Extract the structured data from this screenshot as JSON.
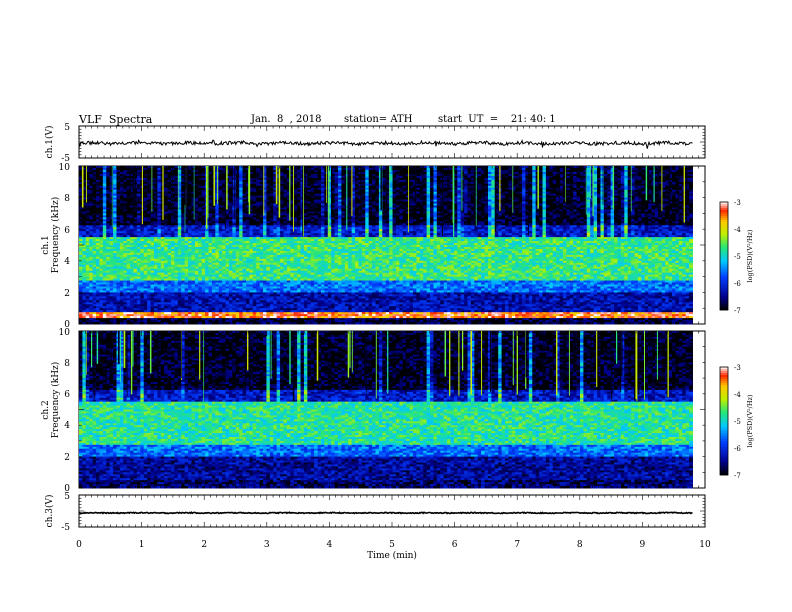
{
  "header": {
    "title": "VLF  Spectra",
    "date": "Jan.  8  , 2018",
    "station": "station= ATH",
    "start_ut": "start  UT  =    21: 40: 1"
  },
  "chart_data": [
    {
      "type": "line",
      "panel": "ch1-waveform",
      "ylabel": "ch.1(V)",
      "ylim": [
        -5,
        5
      ],
      "yticks": [
        "5",
        "-5"
      ],
      "xlim": [
        0,
        10
      ],
      "trace_level_V": -0.4,
      "trace_noise_V": 0.5
    },
    {
      "type": "heatmap",
      "panel": "ch1-spectrogram",
      "ylabel": "ch.1\nFrequency  (kHz)",
      "ylabel_line1": "ch.1",
      "ylabel_line2": "Frequency  (kHz)",
      "ylim": [
        0,
        10
      ],
      "yticks": [
        "0",
        "2",
        "4",
        "6",
        "8",
        "10"
      ],
      "xlim": [
        0,
        10
      ],
      "data_xmax_min": 9.8,
      "colorbar": {
        "label": "log(PSD)(V²/Hz)",
        "range": [
          -7,
          -3
        ],
        "ticks": [
          "-3",
          "-4",
          "-5",
          "-6",
          "-7"
        ]
      },
      "bands_kHz": [
        {
          "range": [
            0,
            0.4
          ],
          "level": -6.8
        },
        {
          "range": [
            0.4,
            0.8
          ],
          "level": -3.4
        },
        {
          "range": [
            0.8,
            2.0
          ],
          "level": -6.3
        },
        {
          "range": [
            2.0,
            2.8
          ],
          "level": -5.6
        },
        {
          "range": [
            2.8,
            5.5
          ],
          "level": -4.7
        },
        {
          "range": [
            5.5,
            6.2
          ],
          "level": -6.2
        },
        {
          "range": [
            6.2,
            10
          ],
          "level": -6.9
        }
      ]
    },
    {
      "type": "heatmap",
      "panel": "ch2-spectrogram",
      "ylabel": "ch.2\nFrequency  (kHz)",
      "ylabel_line1": "ch.2",
      "ylabel_line2": "Frequency  (kHz)",
      "ylim": [
        0,
        10
      ],
      "yticks": [
        "0",
        "2",
        "4",
        "6",
        "8",
        "10"
      ],
      "xlim": [
        0,
        10
      ],
      "data_xmax_min": 9.8,
      "colorbar": {
        "label": "log(PSD)(V²/Hz)",
        "range": [
          -7,
          -3
        ],
        "ticks": [
          "-3",
          "-4",
          "-5",
          "-6",
          "-7"
        ]
      },
      "bands_kHz": [
        {
          "range": [
            0,
            0.5
          ],
          "level": -6.6
        },
        {
          "range": [
            0.5,
            2.0
          ],
          "level": -6.4
        },
        {
          "range": [
            2.0,
            2.8
          ],
          "level": -5.6
        },
        {
          "range": [
            2.8,
            5.5
          ],
          "level": -4.8
        },
        {
          "range": [
            5.5,
            6.2
          ],
          "level": -6.2
        },
        {
          "range": [
            6.2,
            10
          ],
          "level": -6.9
        }
      ]
    },
    {
      "type": "line",
      "panel": "ch3-waveform",
      "ylabel": "ch.3(V)",
      "ylim": [
        -5,
        5
      ],
      "yticks": [
        "5",
        "-5"
      ],
      "xlim": [
        0,
        10
      ],
      "trace_level_V": -0.6,
      "trace_noise_V": 0.15,
      "xlabel": "Time  (min)",
      "xticks": [
        "0",
        "1",
        "2",
        "3",
        "4",
        "5",
        "6",
        "7",
        "8",
        "9",
        "10"
      ]
    }
  ]
}
